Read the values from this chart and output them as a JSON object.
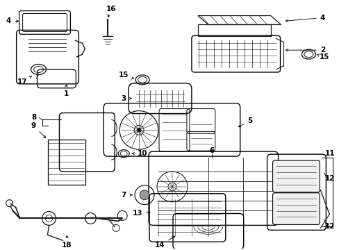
{
  "background_color": "#ffffff",
  "line_color": "#1a1a1a",
  "text_color": "#000000",
  "figsize": [
    4.89,
    3.6
  ],
  "dpi": 100,
  "label_fontsize": 7.5
}
